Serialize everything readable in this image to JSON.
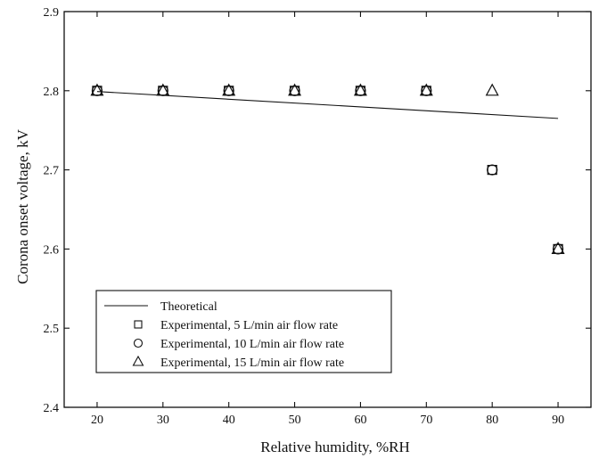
{
  "chart_data": {
    "type": "scatter",
    "xlabel": "Relative humidity, %RH",
    "ylabel": "Corona onset voltage, kV",
    "xlim": [
      15,
      95
    ],
    "ylim": [
      2.4,
      2.9
    ],
    "xticks": [
      20,
      30,
      40,
      50,
      60,
      70,
      80,
      90
    ],
    "yticks": [
      2.4,
      2.5,
      2.6,
      2.7,
      2.8,
      2.9
    ],
    "x_tick_labels": [
      "20",
      "30",
      "40",
      "50",
      "60",
      "70",
      "80",
      "90"
    ],
    "y_tick_labels": [
      "2.4",
      "2.5",
      "2.6",
      "2.7",
      "2.8",
      "2.9"
    ],
    "grid": false,
    "legend_position": "bottom-left",
    "series": [
      {
        "name": "Theoretical",
        "marker": "line",
        "x": [
          20,
          90
        ],
        "y": [
          2.799,
          2.765
        ]
      },
      {
        "name": "Experimental, 5 L/min air flow rate",
        "marker": "square",
        "x": [
          20,
          30,
          40,
          50,
          60,
          70,
          80,
          90
        ],
        "y": [
          2.8,
          2.8,
          2.8,
          2.8,
          2.8,
          2.8,
          2.7,
          2.6
        ]
      },
      {
        "name": "Experimental, 10 L/min air flow rate",
        "marker": "circle",
        "x": [
          20,
          30,
          40,
          50,
          60,
          70,
          80,
          90
        ],
        "y": [
          2.8,
          2.8,
          2.8,
          2.8,
          2.8,
          2.8,
          2.7,
          2.6
        ]
      },
      {
        "name": "Experimental, 15 L/min air flow rate",
        "marker": "triangle",
        "x": [
          20,
          30,
          40,
          50,
          60,
          70,
          80,
          90
        ],
        "y": [
          2.8,
          2.8,
          2.8,
          2.8,
          2.8,
          2.8,
          2.8,
          2.6
        ]
      }
    ]
  }
}
